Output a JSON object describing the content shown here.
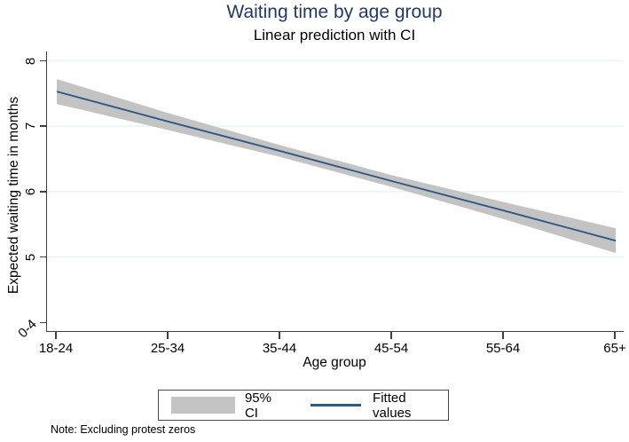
{
  "figure": {
    "colors": {
      "title": "#233a66",
      "line": "#2d5986",
      "band": "#c3c3c3",
      "grid": "#e9f5f0",
      "axis": "#3f3f3f"
    }
  },
  "chart_data": {
    "type": "line",
    "title": "Waiting time by age group",
    "subtitle": "Linear prediction with CI",
    "xlabel": "Age group",
    "ylabel": "Expected waiting time in months",
    "note": "Note: Excluding protest zeros",
    "categories": [
      "18-24",
      "25-34",
      "35-44",
      "45-54",
      "55-64",
      "65+"
    ],
    "series": [
      {
        "name": "Fitted values",
        "style": "line",
        "values": [
          7.53,
          7.07,
          6.62,
          6.16,
          5.71,
          5.25
        ]
      },
      {
        "name": "95% CI upper",
        "style": "band-edge",
        "values": [
          7.72,
          7.2,
          6.71,
          6.25,
          5.84,
          5.44
        ]
      },
      {
        "name": "95% CI lower",
        "style": "band-edge",
        "values": [
          7.34,
          6.94,
          6.53,
          6.07,
          5.58,
          5.06
        ]
      }
    ],
    "ylim": [
      4,
      8.15
    ],
    "yticks": [
      {
        "value": 8,
        "label": "8",
        "grid": true,
        "angle": -90
      },
      {
        "value": 7,
        "label": "7",
        "grid": true,
        "angle": -90
      },
      {
        "value": 6,
        "label": "6",
        "grid": true,
        "angle": -90
      },
      {
        "value": 5,
        "label": "5",
        "grid": true,
        "angle": -90
      },
      {
        "value": 4,
        "label": "0-4",
        "grid": false,
        "angle": -45
      }
    ],
    "grid": "horizontal-only",
    "legend_position": "bottom",
    "legend": [
      {
        "swatch": "band",
        "label": "95% CI"
      },
      {
        "swatch": "line",
        "label": "Fitted values"
      }
    ]
  }
}
